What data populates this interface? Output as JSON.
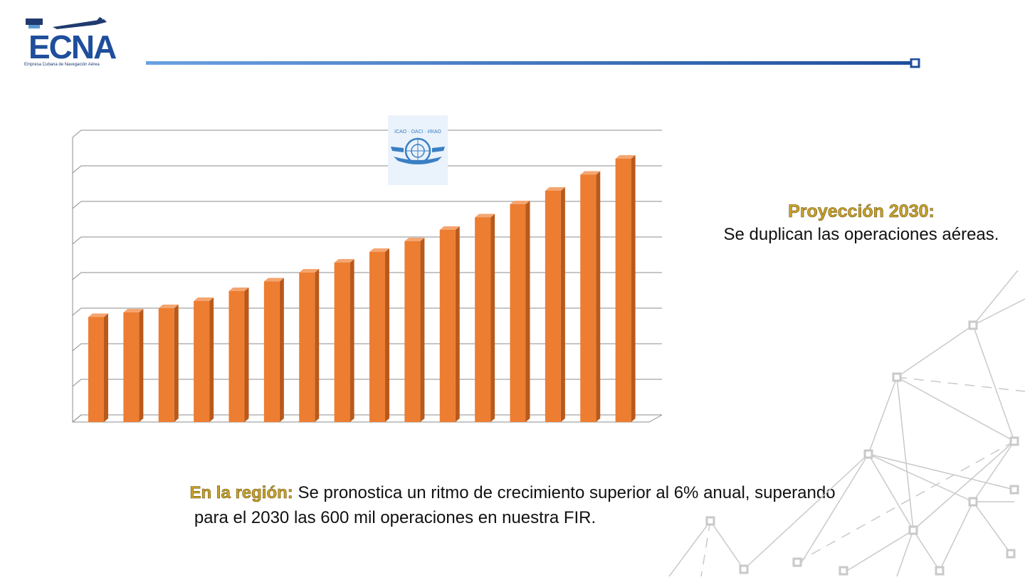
{
  "header": {
    "logo_text": "ECNA",
    "logo_caption": "Empresa Cubana de Navegación Aérea"
  },
  "emblem": {
    "text": "ICAO · OACI · ИКАО"
  },
  "projection": {
    "title": "Proyección 2030:",
    "text": "Se duplican las operaciones aéreas."
  },
  "region": {
    "label": "En la región:",
    "text_line1": " Se pronostica un ritmo de crecimiento superior al 6% anual, superando",
    "text_line2": "para el 2030 las 600 mil operaciones en nuestra FIR."
  },
  "colors": {
    "bar": "#ed7d31",
    "bar_side": "#b85a1c",
    "bar_top": "#f4a570",
    "brand_blue": "#1f4e9c",
    "accent_gold": "#c8a22a"
  },
  "chart_data": {
    "type": "bar",
    "title": "",
    "xlabel": "",
    "ylabel": "",
    "ylim": [
      0,
      8
    ],
    "grid": true,
    "categories": [
      "",
      "",
      "",
      "",
      "",
      "",
      "",
      "",
      "",
      "",
      "",
      "",
      "",
      "",
      "",
      ""
    ],
    "values": [
      2.95,
      3.08,
      3.2,
      3.4,
      3.68,
      3.95,
      4.2,
      4.48,
      4.78,
      5.08,
      5.4,
      5.75,
      6.12,
      6.5,
      6.95,
      7.4
    ]
  }
}
